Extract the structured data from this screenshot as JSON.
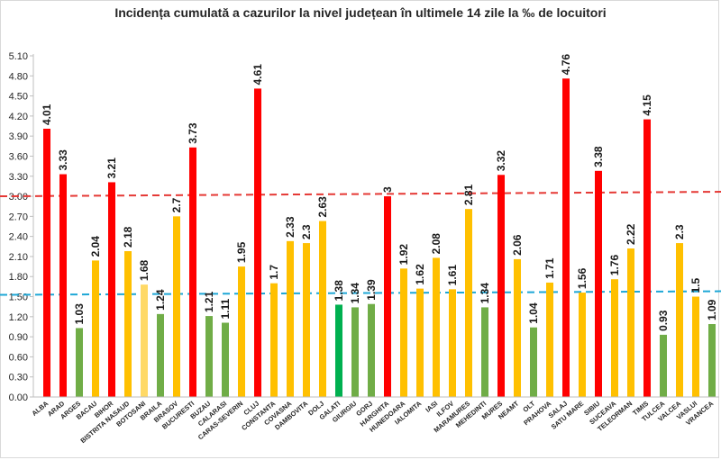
{
  "chart_data": {
    "type": "bar",
    "title": "Incidența cumulată a cazurilor la nivel județean în ultimele 14 zile la ‰ de locuitori",
    "xlabel": "",
    "ylabel": "",
    "ylim": [
      0,
      5.1
    ],
    "yticks": [
      "0.00",
      "0.30",
      "0.60",
      "0.90",
      "1.20",
      "1.50",
      "1.80",
      "2.10",
      "2.40",
      "2.70",
      "3.00",
      "3.30",
      "3.60",
      "3.90",
      "4.20",
      "4.50",
      "4.80",
      "5.10"
    ],
    "grid": false,
    "legend": "none",
    "categories": [
      "ALBA",
      "ARAD",
      "ARGES",
      "BACAU",
      "BIHOR",
      "BISTRITA NASAUD",
      "BOTOSANI",
      "BRAILA",
      "BRASOV",
      "BUCURESTI",
      "BUZAU",
      "CALARASI",
      "CARAS-SEVERIN",
      "CLUJ",
      "CONSTANTA",
      "COVASNA",
      "DAMBOVITA",
      "DOLJ",
      "GALATI",
      "GIURGIU",
      "GORJ",
      "HARGHITA",
      "HUNEDOARA",
      "IALOMITA",
      "IASI",
      "ILFOV",
      "MARAMURES",
      "MEHEDINTI",
      "MURES",
      "NEAMT",
      "OLT",
      "PRAHOVA",
      "SALAJ",
      "SATU MARE",
      "SIBIU",
      "SUCEAVA",
      "TELEORMAN",
      "TIMIS",
      "TULCEA",
      "VALCEA",
      "VASLUI",
      "VRANCEA"
    ],
    "values": [
      4.01,
      3.33,
      1.03,
      2.04,
      3.21,
      2.18,
      1.68,
      1.24,
      2.7,
      3.73,
      1.21,
      1.11,
      1.95,
      4.61,
      1.7,
      2.33,
      2.3,
      2.63,
      1.38,
      1.34,
      1.39,
      3,
      1.92,
      1.62,
      2.08,
      1.61,
      2.81,
      1.34,
      3.32,
      2.06,
      1.04,
      1.71,
      4.76,
      1.56,
      3.38,
      1.76,
      2.22,
      4.15,
      0.93,
      2.3,
      1.5,
      1.09
    ],
    "data_labels": [
      "4.01",
      "3.33",
      "1.03",
      "2.04",
      "3.21",
      "2.18",
      "1.68",
      "1.24",
      "2.7",
      "3.73",
      "1.21",
      "1.11",
      "1.95",
      "4.61",
      "1.7",
      "2.33",
      "2.3",
      "2.63",
      "1.38",
      "1.34",
      "1.39",
      "3",
      "1.92",
      "1.62",
      "2.08",
      "1.61",
      "2.81",
      "1.34",
      "3.32",
      "2.06",
      "1.04",
      "1.71",
      "4.76",
      "1.56",
      "3.38",
      "1.76",
      "2.22",
      "4.15",
      "0.93",
      "2.3",
      "1.5",
      "1.09"
    ],
    "bar_colors": [
      "#ff0000",
      "#ff0000",
      "#70ad47",
      "#ffc000",
      "#ff0000",
      "#ffc000",
      "#ffd966",
      "#70ad47",
      "#ffc000",
      "#ff0000",
      "#70ad47",
      "#70ad47",
      "#ffc000",
      "#ff0000",
      "#ffc000",
      "#ffc000",
      "#ffc000",
      "#ffc000",
      "#00b050",
      "#70ad47",
      "#70ad47",
      "#ff0000",
      "#ffc000",
      "#ffc000",
      "#ffc000",
      "#ffc000",
      "#ffc000",
      "#70ad47",
      "#ff0000",
      "#ffc000",
      "#70ad47",
      "#ffc000",
      "#ff0000",
      "#ffc000",
      "#ff0000",
      "#ffc000",
      "#ffc000",
      "#ff0000",
      "#70ad47",
      "#ffc000",
      "#ffc000",
      "#70ad47"
    ],
    "reference_lines": [
      {
        "value": 3.0,
        "color": "#e53935",
        "style": "dashed"
      },
      {
        "value": 1.5,
        "color": "#1ea7d6",
        "style": "dashed"
      }
    ]
  }
}
